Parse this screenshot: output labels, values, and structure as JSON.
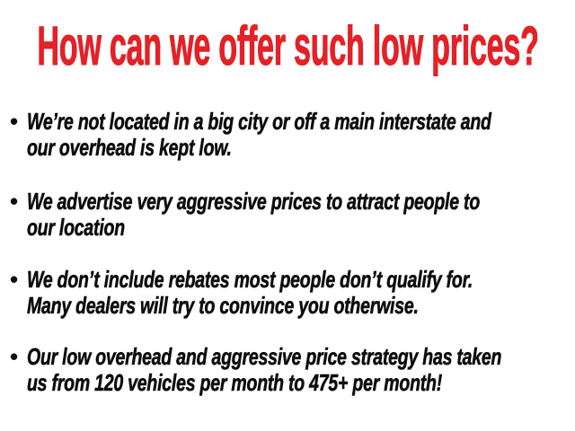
{
  "slide": {
    "title": "How can we offer such low prices?",
    "bullet_marker": "•",
    "bullets": [
      {
        "lines": [
          "We’re not located in a big city or off a main interstate and",
          "our overhead is kept low."
        ]
      },
      {
        "lines": [
          "We advertise very aggressive prices to attract people to",
          "our location"
        ]
      },
      {
        "lines": [
          "We don’t include rebates most people don’t qualify for.",
          "Many dealers will try to convince you otherwise."
        ]
      },
      {
        "lines": [
          "Our low overhead and aggressive price strategy has taken",
          "us from 120 vehicles per month to 475+ per month!"
        ]
      }
    ]
  },
  "colors": {
    "title_red": "#e32126",
    "body_black": "#0d0d0d",
    "background": "#ffffff"
  }
}
